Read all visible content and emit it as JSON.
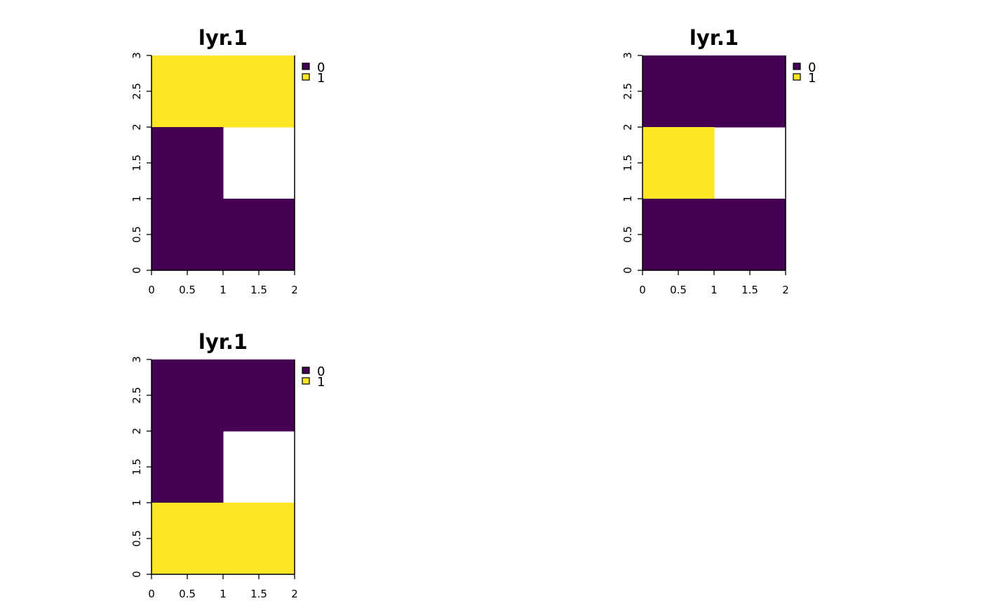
{
  "chart_data": [
    {
      "type": "heatmap",
      "title": "lyr.1",
      "xlim": [
        0,
        2
      ],
      "ylim": [
        0,
        3
      ],
      "x_ticks": [
        "0",
        "0.5",
        "1",
        "1.5",
        "2"
      ],
      "y_ticks": [
        "0",
        "0.5",
        "1",
        "1.5",
        "2",
        "2.5",
        "3"
      ],
      "ncol": 2,
      "nrow": 3,
      "cells_top_to_bottom": [
        [
          1,
          1
        ],
        [
          0,
          null
        ],
        [
          0,
          0
        ]
      ],
      "legend": [
        {
          "label": "0",
          "color": "#440154"
        },
        {
          "label": "1",
          "color": "#FDE725"
        }
      ],
      "legend_position": "top-right",
      "grid": false
    },
    {
      "type": "heatmap",
      "title": "lyr.1",
      "xlim": [
        0,
        2
      ],
      "ylim": [
        0,
        3
      ],
      "x_ticks": [
        "0",
        "0.5",
        "1",
        "1.5",
        "2"
      ],
      "y_ticks": [
        "0",
        "0.5",
        "1",
        "1.5",
        "2",
        "2.5",
        "3"
      ],
      "ncol": 2,
      "nrow": 3,
      "cells_top_to_bottom": [
        [
          0,
          0
        ],
        [
          1,
          null
        ],
        [
          0,
          0
        ]
      ],
      "legend": [
        {
          "label": "0",
          "color": "#440154"
        },
        {
          "label": "1",
          "color": "#FDE725"
        }
      ],
      "legend_position": "top-right",
      "grid": false
    },
    {
      "type": "heatmap",
      "title": "lyr.1",
      "xlim": [
        0,
        2
      ],
      "ylim": [
        0,
        3
      ],
      "x_ticks": [
        "0",
        "0.5",
        "1",
        "1.5",
        "2"
      ],
      "y_ticks": [
        "0",
        "0.5",
        "1",
        "1.5",
        "2",
        "2.5",
        "3"
      ],
      "ncol": 2,
      "nrow": 3,
      "cells_top_to_bottom": [
        [
          0,
          0
        ],
        [
          0,
          null
        ],
        [
          1,
          1
        ]
      ],
      "legend": [
        {
          "label": "0",
          "color": "#440154"
        },
        {
          "label": "1",
          "color": "#FDE725"
        }
      ],
      "legend_position": "top-right",
      "grid": false
    }
  ]
}
